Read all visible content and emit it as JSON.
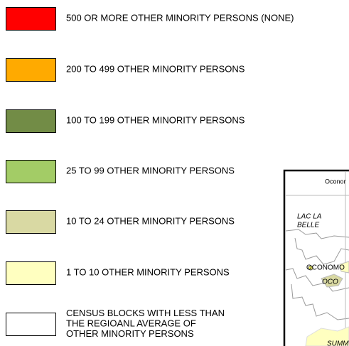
{
  "legend": {
    "items": [
      {
        "label": [
          "500 OR MORE OTHER MINORITY PERSONS (NONE)"
        ],
        "color": "#ff0000"
      },
      {
        "label": [
          "200 TO 499 OTHER MINORITY PERSONS"
        ],
        "color": "#ffaa00"
      },
      {
        "label": [
          "100 TO 199 OTHER MINORITY PERSONS"
        ],
        "color": "#728c46"
      },
      {
        "label": [
          "25 TO 99 OTHER MINORITY PERSONS"
        ],
        "color": "#a3cc66"
      },
      {
        "label": [
          "10 TO 24 OTHER MINORITY PERSONS"
        ],
        "color": "#d9d9a3"
      },
      {
        "label": [
          "1 TO 10 OTHER MINORITY PERSONS"
        ],
        "color": "#ffffc0"
      },
      {
        "label": [
          "CENSUS BLOCKS WITH LESS THAN",
          "THE REGIOANL AVERAGE OF",
          "OTHER MINORITY PERSONS"
        ],
        "color": "#ffffff"
      }
    ]
  },
  "map": {
    "labels": [
      {
        "lines": [
          "Oconor"
        ],
        "style": "small"
      },
      {
        "lines": [
          "LAC LA",
          "BELLE"
        ],
        "style": "italic"
      },
      {
        "lines": [
          "OCONOMO"
        ],
        "style": "normal"
      },
      {
        "lines": [
          "OCO"
        ],
        "style": "italic"
      },
      {
        "lines": [
          "SUMM"
        ],
        "style": "italic"
      }
    ]
  }
}
